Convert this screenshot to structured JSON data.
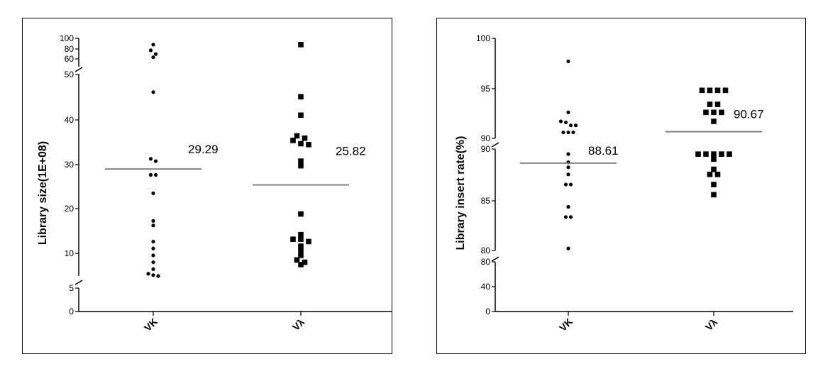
{
  "chart_data": [
    {
      "type": "scatter",
      "ylabel": "Library size(1E+08)",
      "categories": [
        "VK",
        "Vλ"
      ],
      "y_breaks": [
        [
          5,
          6
        ],
        [
          50,
          55
        ]
      ],
      "yticks": [
        "0",
        "5",
        "10",
        "20",
        "30",
        "40",
        "50",
        "60",
        "80",
        "100"
      ],
      "series": [
        {
          "category": "VK",
          "marker": "circle",
          "values": [
            90,
            81,
            75,
            70,
            46,
            31.5,
            31,
            28,
            28,
            24,
            18,
            17,
            13.5,
            12,
            10.5,
            9,
            7.5,
            6.5,
            6.2,
            6
          ]
        },
        {
          "category": "Vλ",
          "marker": "square",
          "values": [
            90,
            45,
            41,
            36.5,
            36,
            35.5,
            34.8,
            34.6,
            31,
            30,
            19.5,
            15,
            14,
            14,
            13.5,
            12.5,
            11.5,
            10.5,
            9.5,
            9,
            8.5
          ]
        }
      ],
      "means": [
        {
          "category": "VK",
          "value": 29.29,
          "label": "29.29"
        },
        {
          "category": "Vλ",
          "value": 25.82,
          "label": "25.82"
        }
      ]
    },
    {
      "type": "scatter",
      "ylabel": "Library insert rate(%)",
      "categories": [
        "VK",
        "Vλ"
      ],
      "y_breaks": [
        [
          80,
          80
        ],
        [
          90,
          90
        ]
      ],
      "yticks": [
        "0",
        "40",
        "80",
        "80",
        "85",
        "90",
        "90",
        "95",
        "100"
      ],
      "series": [
        {
          "category": "VK",
          "marker": "circle",
          "values": [
            97.7,
            92.6,
            91.7,
            91.6,
            91.3,
            91.3,
            90.6,
            90.6,
            90.6,
            89.5,
            88.7,
            88.2,
            87.5,
            86.5,
            86.5,
            84.3,
            83.3,
            83.3,
            80.2
          ]
        },
        {
          "category": "Vλ",
          "marker": "square",
          "values": [
            94.8,
            94.8,
            94.8,
            94.8,
            93.4,
            93.4,
            92.6,
            92.6,
            92.6,
            91.7,
            89.5,
            89.5,
            89.5,
            89.5,
            89.5,
            89.0,
            88.0,
            87.5,
            87.5,
            86.5,
            85.5
          ]
        }
      ],
      "means": [
        {
          "category": "VK",
          "value": 88.61,
          "label": "88.61"
        },
        {
          "category": "Vλ",
          "value": 90.67,
          "label": "90.67"
        }
      ]
    }
  ]
}
